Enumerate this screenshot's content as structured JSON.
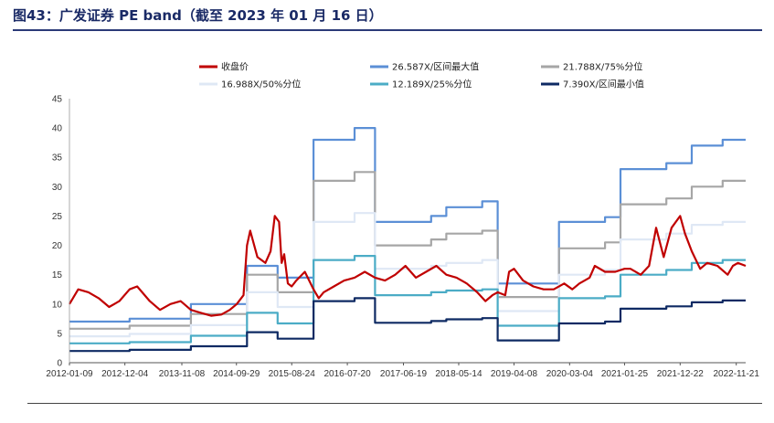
{
  "title": "图43：广发证券 PE band（截至 2023 年 01 月 16 日）",
  "chart_data": {
    "type": "line",
    "ylim": [
      0,
      45
    ],
    "yticks": [
      0,
      5,
      10,
      15,
      20,
      25,
      30,
      35,
      40,
      45
    ],
    "x_tick_labels": [
      "2012-01-09",
      "2012-12-04",
      "2013-11-08",
      "2014-09-29",
      "2015-08-24",
      "2016-07-20",
      "2017-06-19",
      "2018-05-14",
      "2019-04-08",
      "2020-03-04",
      "2021-01-25",
      "2021-12-22",
      "2022-11-21"
    ],
    "x_range": [
      "2012-01-09",
      "2023-01-16"
    ],
    "legend_position": "top",
    "series": [
      {
        "name": "收盘价",
        "color": "#c00000",
        "width": 2.2,
        "x": [
          "2012-01-09",
          "2012-03-01",
          "2012-05-01",
          "2012-07-01",
          "2012-09-01",
          "2012-11-01",
          "2013-01-01",
          "2013-02-15",
          "2013-05-01",
          "2013-07-01",
          "2013-09-01",
          "2013-11-01",
          "2014-01-01",
          "2014-03-01",
          "2014-05-01",
          "2014-07-01",
          "2014-08-20",
          "2014-10-01",
          "2014-11-10",
          "2014-12-01",
          "2014-12-20",
          "2015-02-01",
          "2015-03-20",
          "2015-04-20",
          "2015-05-15",
          "2015-06-10",
          "2015-06-25",
          "2015-07-10",
          "2015-08-01",
          "2015-08-24",
          "2015-09-20",
          "2015-11-10",
          "2016-01-01",
          "2016-02-01",
          "2016-03-01",
          "2016-05-01",
          "2016-07-01",
          "2016-09-01",
          "2016-11-01",
          "2017-01-01",
          "2017-03-01",
          "2017-05-01",
          "2017-07-01",
          "2017-09-01",
          "2017-11-01",
          "2018-01-01",
          "2018-03-01",
          "2018-05-01",
          "2018-07-01",
          "2018-09-01",
          "2018-10-20",
          "2018-12-01",
          "2019-01-01",
          "2019-02-15",
          "2019-03-10",
          "2019-04-08",
          "2019-06-01",
          "2019-08-01",
          "2019-10-01",
          "2019-12-01",
          "2020-02-01",
          "2020-03-20",
          "2020-05-01",
          "2020-07-01",
          "2020-08-01",
          "2020-10-01",
          "2020-12-01",
          "2021-01-25",
          "2021-03-01",
          "2021-05-01",
          "2021-06-20",
          "2021-08-01",
          "2021-09-15",
          "2021-11-01",
          "2021-12-22",
          "2022-01-20",
          "2022-03-01",
          "2022-04-20",
          "2022-06-01",
          "2022-08-01",
          "2022-10-01",
          "2022-11-01",
          "2022-12-01",
          "2023-01-16"
        ],
        "values": [
          10.0,
          12.5,
          12.0,
          11.0,
          9.5,
          10.5,
          12.5,
          13.0,
          10.5,
          9.0,
          10.0,
          10.5,
          9.0,
          8.5,
          8.0,
          8.2,
          9.0,
          10.0,
          11.5,
          20.0,
          22.5,
          18.0,
          17.0,
          19.0,
          25.0,
          24.0,
          17.0,
          18.5,
          13.5,
          13.0,
          14.0,
          15.5,
          12.5,
          11.0,
          12.0,
          13.0,
          14.0,
          14.5,
          15.5,
          14.5,
          14.0,
          15.0,
          16.5,
          14.5,
          15.5,
          16.5,
          15.0,
          14.5,
          13.5,
          12.0,
          10.5,
          11.5,
          12.0,
          11.5,
          15.5,
          16.0,
          14.0,
          13.0,
          12.5,
          12.5,
          13.5,
          12.5,
          13.5,
          14.5,
          16.5,
          15.5,
          15.5,
          16.0,
          16.0,
          15.0,
          16.5,
          23.0,
          18.0,
          23.0,
          25.0,
          22.0,
          19.0,
          16.0,
          17.0,
          16.5,
          15.0,
          16.5,
          17.0,
          16.5
        ]
      },
      {
        "name": "26.587X/区间最大值",
        "color": "#5b8fd6",
        "width": 2.2,
        "step": true,
        "x": [
          "2012-01-09",
          "2013-01-01",
          "2014-01-01",
          "2014-12-01",
          "2015-06-01",
          "2016-01-01",
          "2016-09-01",
          "2017-01-01",
          "2017-12-01",
          "2018-03-01",
          "2018-10-01",
          "2019-01-01",
          "2020-01-01",
          "2020-10-01",
          "2021-01-01",
          "2021-10-01",
          "2022-03-01",
          "2022-09-01"
        ],
        "values": [
          7.0,
          7.5,
          10.0,
          16.5,
          14.5,
          38.0,
          40.0,
          24.0,
          25.0,
          26.5,
          27.5,
          13.5,
          24.0,
          24.8,
          33.0,
          34.0,
          37.0,
          38.0
        ]
      },
      {
        "name": "21.788X/75%分位",
        "color": "#a6a6a6",
        "width": 2.2,
        "step": true,
        "x": [
          "2012-01-09",
          "2013-01-01",
          "2014-01-01",
          "2014-12-01",
          "2015-06-01",
          "2016-01-01",
          "2016-09-01",
          "2017-01-01",
          "2017-12-01",
          "2018-03-01",
          "2018-10-01",
          "2019-01-01",
          "2020-01-01",
          "2020-10-01",
          "2021-01-01",
          "2021-10-01",
          "2022-03-01",
          "2022-09-01"
        ],
        "values": [
          5.8,
          6.3,
          8.3,
          15.0,
          12.0,
          31.0,
          32.5,
          20.0,
          21.0,
          22.0,
          22.5,
          11.2,
          19.5,
          20.5,
          27.0,
          28.0,
          30.0,
          31.0
        ]
      },
      {
        "name": "16.988X/50%分位",
        "color": "#dfe8f5",
        "width": 2.2,
        "step": true,
        "x": [
          "2012-01-09",
          "2013-01-01",
          "2014-01-01",
          "2014-12-01",
          "2015-06-01",
          "2016-01-01",
          "2016-09-01",
          "2017-01-01",
          "2017-12-01",
          "2018-03-01",
          "2018-10-01",
          "2019-01-01",
          "2020-01-01",
          "2020-10-01",
          "2021-01-01",
          "2021-10-01",
          "2022-03-01",
          "2022-09-01"
        ],
        "values": [
          4.5,
          4.9,
          6.4,
          12.0,
          9.5,
          24.0,
          25.5,
          16.0,
          16.5,
          17.0,
          17.5,
          8.8,
          15.0,
          15.8,
          21.0,
          22.0,
          23.5,
          24.0
        ]
      },
      {
        "name": "12.189X/25%分位",
        "color": "#4bacc6",
        "width": 2.2,
        "step": true,
        "x": [
          "2012-01-09",
          "2013-01-01",
          "2014-01-01",
          "2014-12-01",
          "2015-06-01",
          "2016-01-01",
          "2016-09-01",
          "2017-01-01",
          "2017-12-01",
          "2018-03-01",
          "2018-10-01",
          "2019-01-01",
          "2020-01-01",
          "2020-10-01",
          "2021-01-01",
          "2021-10-01",
          "2022-03-01",
          "2022-09-01"
        ],
        "values": [
          3.3,
          3.5,
          4.6,
          8.5,
          6.7,
          17.5,
          18.2,
          11.5,
          12.0,
          12.3,
          12.5,
          6.3,
          11.0,
          11.3,
          15.0,
          15.8,
          17.0,
          17.5
        ]
      },
      {
        "name": "7.390X/区间最小值",
        "color": "#0e2a63",
        "width": 2.2,
        "step": true,
        "x": [
          "2012-01-09",
          "2013-01-01",
          "2014-01-01",
          "2014-12-01",
          "2015-06-01",
          "2016-01-01",
          "2016-09-01",
          "2017-01-01",
          "2017-12-01",
          "2018-03-01",
          "2018-10-01",
          "2019-01-01",
          "2020-01-01",
          "2020-10-01",
          "2021-01-01",
          "2021-10-01",
          "2022-03-01",
          "2022-09-01"
        ],
        "values": [
          2.0,
          2.2,
          2.8,
          5.2,
          4.1,
          10.5,
          11.0,
          6.8,
          7.1,
          7.4,
          7.6,
          3.8,
          6.7,
          7.0,
          9.2,
          9.6,
          10.3,
          10.6
        ]
      }
    ]
  }
}
